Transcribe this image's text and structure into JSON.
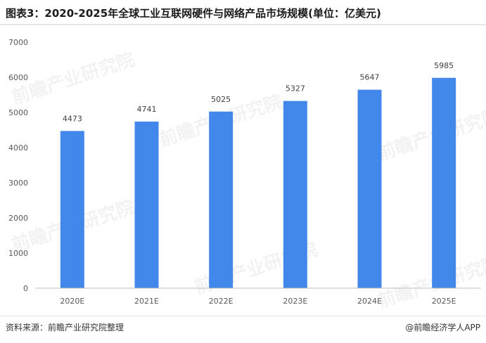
{
  "title": "图表3：2020-2025年全球工业互联网硬件与网络产品市场规模(单位：亿美元)",
  "source": "资料来源：前瞻产业研究院整理",
  "credit": "@前瞻经济学人APP",
  "watermark": "前瞻产业研究院",
  "colors": {
    "bar": "#4287ea",
    "axis": "#bfbfbf",
    "text": "#595959"
  },
  "chart_data": {
    "type": "bar",
    "title": "图表3：2020-2025年全球工业互联网硬件与网络产品市场规模(单位：亿美元)",
    "categories": [
      "2020E",
      "2021E",
      "2022E",
      "2023E",
      "2024E",
      "2025E"
    ],
    "values": [
      4473,
      4741,
      5025,
      5327,
      5647,
      5985
    ],
    "ylim": [
      0,
      7000
    ],
    "yticks": [
      0,
      1000,
      2000,
      3000,
      4000,
      5000,
      6000,
      7000
    ],
    "grid": false,
    "legend": "none"
  }
}
